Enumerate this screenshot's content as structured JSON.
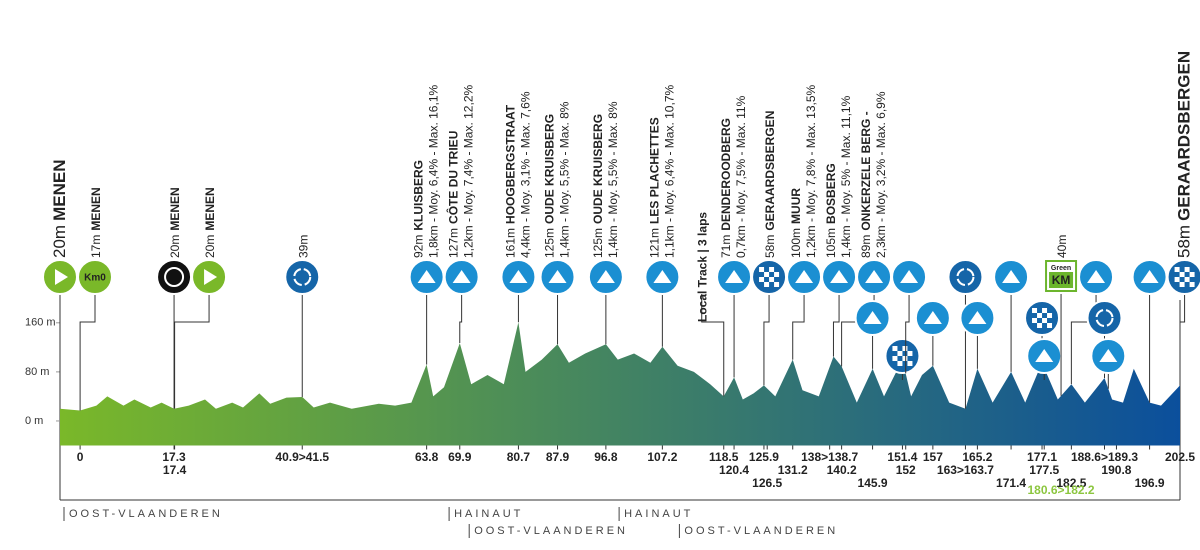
{
  "chart_data": {
    "type": "area",
    "color_start": "#7ab829",
    "color_end": "#0b4f9c",
    "xlim": [
      -3.7,
      202.5
    ],
    "ylim": [
      -40,
      220
    ],
    "yticks": [
      {
        "value": 0,
        "label": "0 m"
      },
      {
        "value": 80,
        "label": "80 m"
      },
      {
        "value": 160,
        "label": "160 m"
      }
    ],
    "x": [
      -3.7,
      0,
      3,
      5,
      8,
      10,
      13,
      15,
      17.3,
      20,
      23,
      25,
      28,
      30,
      33,
      35,
      38,
      40.9,
      43,
      46,
      50,
      55,
      58,
      61,
      63.8,
      65,
      67,
      69.9,
      72,
      75,
      78,
      80.7,
      82,
      85,
      87.9,
      90,
      93,
      96.8,
      99,
      102,
      105,
      107.2,
      110,
      113,
      116,
      118.5,
      120.4,
      122,
      124,
      125.9,
      128,
      131.2,
      133,
      136,
      138.7,
      140.2,
      143,
      145.9,
      148,
      151.4,
      153,
      155,
      157,
      160,
      163,
      165.2,
      168,
      171.4,
      174,
      177.1,
      180,
      182.5,
      185,
      188.6,
      190,
      192,
      194,
      196.9,
      199,
      202.5
    ],
    "values": [
      20,
      17,
      25,
      40,
      25,
      35,
      22,
      30,
      20,
      25,
      35,
      20,
      30,
      22,
      45,
      28,
      38,
      39,
      22,
      30,
      20,
      28,
      25,
      30,
      92,
      40,
      55,
      127,
      60,
      75,
      60,
      161,
      80,
      100,
      125,
      95,
      110,
      125,
      100,
      110,
      95,
      121,
      90,
      80,
      60,
      40,
      71,
      35,
      45,
      58,
      40,
      100,
      50,
      40,
      105,
      89,
      30,
      85,
      40,
      100,
      40,
      75,
      90,
      30,
      20,
      85,
      30,
      80,
      30,
      95,
      35,
      60,
      30,
      70,
      35,
      30,
      85,
      30,
      25,
      58
    ],
    "xticks": [
      {
        "value": 0,
        "label": "0"
      },
      {
        "value": 17.3,
        "label": "17.3"
      },
      {
        "value": 17.4,
        "label": "17.4"
      },
      {
        "value": 40.9,
        "label": "40.9>41.5"
      },
      {
        "value": 63.8,
        "label": "63.8"
      },
      {
        "value": 69.9,
        "label": "69.9"
      },
      {
        "value": 80.7,
        "label": "80.7"
      },
      {
        "value": 87.9,
        "label": "87.9"
      },
      {
        "value": 96.8,
        "label": "96.8"
      },
      {
        "value": 107.2,
        "label": "107.2"
      },
      {
        "value": 118.5,
        "label": "118.5"
      },
      {
        "value": 120.4,
        "label": "120.4"
      },
      {
        "value": 125.9,
        "label": "125.9"
      },
      {
        "value": 126.5,
        "label": "126.5"
      },
      {
        "value": 131.2,
        "label": "131.2"
      },
      {
        "value": 138,
        "label": "138>138.7"
      },
      {
        "value": 140.2,
        "label": "140.2"
      },
      {
        "value": 145.9,
        "label": "145.9"
      },
      {
        "value": 151.4,
        "label": "151.4"
      },
      {
        "value": 152,
        "label": "152"
      },
      {
        "value": 157,
        "label": "157"
      },
      {
        "value": 163,
        "label": "163>163.7"
      },
      {
        "value": 165.2,
        "label": "165.2"
      },
      {
        "value": 171.4,
        "label": "171.4"
      },
      {
        "value": 177.1,
        "label": "177.1"
      },
      {
        "value": 177.5,
        "label": "177.5"
      },
      {
        "value": 182.5,
        "label": "182.5"
      },
      {
        "value": 188.6,
        "label": "188.6>189.3"
      },
      {
        "value": 190.8,
        "label": "190.8"
      },
      {
        "value": 196.9,
        "label": "196.9"
      },
      {
        "value": 202.5,
        "label": "202.5"
      }
    ],
    "points": [
      {
        "km": -3.7,
        "icon": "start",
        "altitude": "20m",
        "name": "MENEN",
        "big": true
      },
      {
        "km": 0,
        "icon": "km0",
        "badge": "Km0",
        "altitude": "17m",
        "name": "MENEN"
      },
      {
        "km": 17.3,
        "icon": "super",
        "altitude": "20m",
        "name": "MENEN"
      },
      {
        "km": 17.4,
        "icon": "start",
        "altitude": "20m",
        "name": "MENEN"
      },
      {
        "km": 40.9,
        "icon": "sprint",
        "altitude": "39m"
      },
      {
        "km": 63.8,
        "icon": "climb",
        "altitude": "92m",
        "name": "KLUISBERG",
        "detail": "1,8km - Moy. 6,4% - Max. 16,1%"
      },
      {
        "km": 69.9,
        "icon": "climb",
        "altitude": "127m",
        "name": "CÔTE DU TRIEU",
        "detail": "1,2km - Moy. 7,4% - Max. 12,2%"
      },
      {
        "km": 80.7,
        "icon": "climb",
        "altitude": "161m",
        "name": "HOOGBERGSTRAAT",
        "detail": "4,4km - Moy. 3,1% - Max. 7,6%"
      },
      {
        "km": 87.9,
        "icon": "climb",
        "altitude": "125m",
        "name": "OUDE KRUISBERG",
        "detail": "1,4km - Moy. 5,5% - Max. 8%"
      },
      {
        "km": 96.8,
        "icon": "climb",
        "altitude": "125m",
        "name": "OUDE KRUISBERG",
        "detail": "1,4km - Moy. 5,5% - Max. 8%"
      },
      {
        "km": 107.2,
        "icon": "climb",
        "altitude": "121m",
        "name": "LES PLACHETTES",
        "detail": "1,1km - Moy. 6,4% - Max. 10,7%"
      },
      {
        "km": 118.5,
        "icon": "none",
        "name": "Local Track | 3 laps"
      },
      {
        "km": 120.4,
        "icon": "climb",
        "altitude": "71m",
        "name": "DENDEROODBERG",
        "detail": "0,7km - Moy. 7,5% - Max. 11%"
      },
      {
        "km": 125.9,
        "icon": "finish",
        "altitude": "58m",
        "name": "GERAARDSBERGEN"
      },
      {
        "km": 131.2,
        "icon": "climb",
        "altitude": "100m",
        "name": "MUUR",
        "detail": "1,2km - Moy. 7,8% - Max. 13,5%"
      },
      {
        "km": 138.7,
        "icon": "climb",
        "altitude": "105m",
        "name": "BOSBERG",
        "detail": "1,4km - Moy. 5% - Max. 11,1%"
      },
      {
        "km": 140.2,
        "icon": "climb",
        "altitude": "89m",
        "name": "ONKERZELE BERG -",
        "detail": "2,3km - Moy. 3,2% - Max. 6,9%"
      },
      {
        "km": 145.9,
        "icon": "climb"
      },
      {
        "km": 151.4,
        "icon": "finish"
      },
      {
        "km": 152,
        "icon": "climb"
      },
      {
        "km": 157,
        "icon": "climb"
      },
      {
        "km": 163,
        "icon": "sprint"
      },
      {
        "km": 165.2,
        "icon": "climb"
      },
      {
        "km": 171.4,
        "icon": "climb"
      },
      {
        "km": 177.1,
        "icon": "finish"
      },
      {
        "km": 177.5,
        "icon": "climb"
      },
      {
        "km": 180.6,
        "icon": "greenkm",
        "badge": "Green",
        "badge2": "KM",
        "altitude": "40m",
        "range_label": "180.6>182.2"
      },
      {
        "km": 182.5,
        "icon": "climb"
      },
      {
        "km": 188.6,
        "icon": "sprint"
      },
      {
        "km": 189.3,
        "icon": "climb"
      },
      {
        "km": 196.9,
        "icon": "climb"
      },
      {
        "km": 202.5,
        "icon": "finish",
        "altitude": "58m",
        "name": "GERAARDSBERGEN",
        "big": true
      }
    ],
    "regions": [
      {
        "km": -3.7,
        "label": "OOST-VLAANDEREN"
      },
      {
        "km": 67.2,
        "label": "HAINAUT"
      },
      {
        "km": 70.9,
        "label": "OOST-VLAANDEREN"
      },
      {
        "km": 98.5,
        "label": "HAINAUT"
      },
      {
        "km": 109.6,
        "label": "OOST-VLAANDEREN"
      }
    ]
  }
}
